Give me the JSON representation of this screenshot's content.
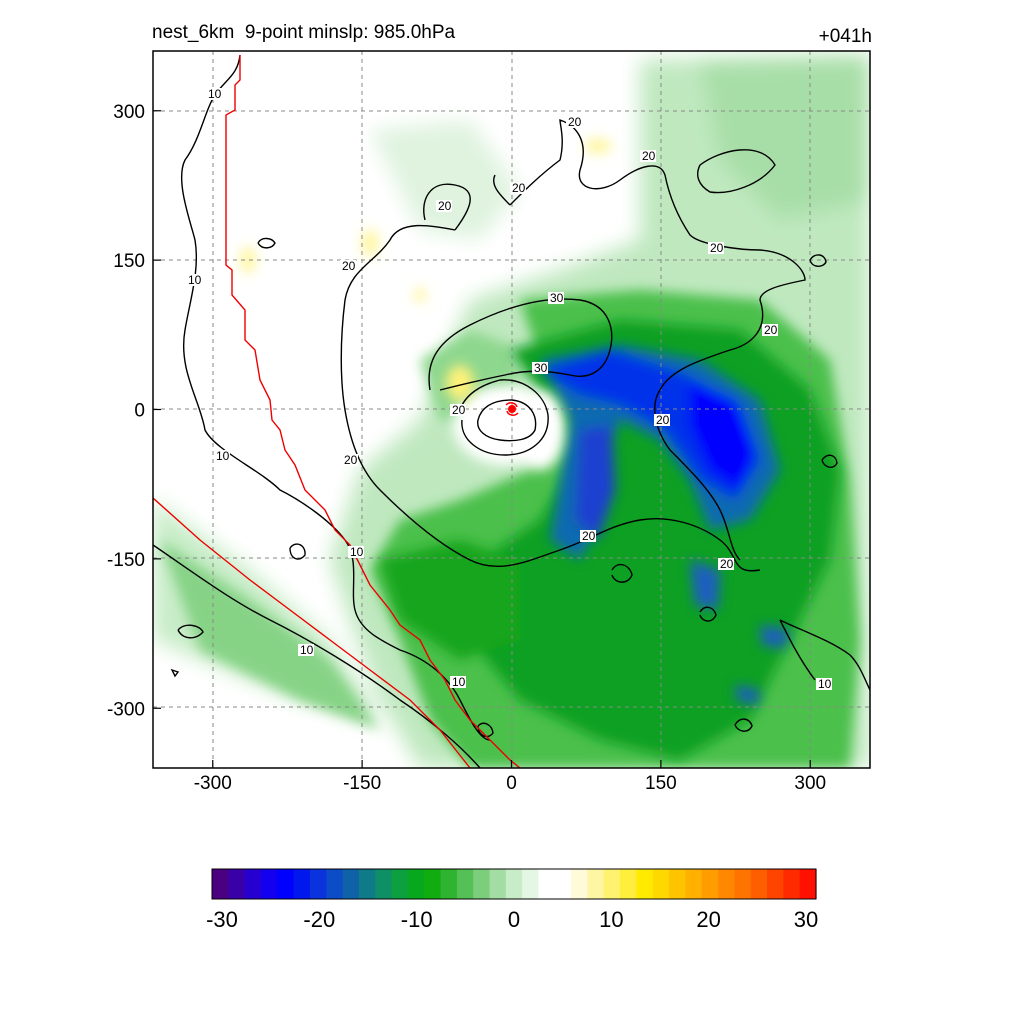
{
  "header": {
    "title_left": "nest_6km  9-point minslp: 985.0hPa",
    "title_right": "+041h"
  },
  "chart_data": {
    "type": "heatmap",
    "title": "nest_6km  9-point minslp: 985.0hPa",
    "valid_time_label": "+041h",
    "x_ticks": [
      -300,
      -150,
      0,
      150,
      300
    ],
    "y_ticks": [
      300,
      150,
      0,
      -150,
      -300
    ],
    "xlim": [
      -360,
      360
    ],
    "ylim": [
      -360,
      360
    ],
    "grid": true,
    "grid_style": "dashed",
    "colorbar": {
      "ticks": [
        "-30",
        "-20",
        "-10",
        "0",
        "10",
        "20",
        "30"
      ],
      "range": [
        -30,
        30
      ],
      "colors": [
        "#4b0082",
        "#3a00a8",
        "#2600d0",
        "#1400f0",
        "#0000ff",
        "#0018ee",
        "#0a32dd",
        "#0c4cc6",
        "#0f62a8",
        "#0f7a88",
        "#0f8f66",
        "#0da040",
        "#08a81e",
        "#10ac10",
        "#2fb42f",
        "#55c055",
        "#7cce7c",
        "#a3dda3",
        "#c7ecc7",
        "#e4f6e4",
        "#ffffff",
        "#ffffff",
        "#fffbd8",
        "#fff6a4",
        "#fff270",
        "#ffee3c",
        "#ffea00",
        "#ffd800",
        "#ffc400",
        "#ffb000",
        "#ff9c00",
        "#ff8800",
        "#ff7400",
        "#ff5e00",
        "#ff4400",
        "#ff2a00",
        "#ff1000"
      ]
    },
    "contours": {
      "levels": [
        10,
        20,
        30
      ],
      "color": "#000000"
    },
    "center_marker": {
      "x": 0,
      "y": 0,
      "color": "#ff0000"
    },
    "field_features": [
      {
        "label": "outer-green-band",
        "value": -6
      },
      {
        "label": "spiral-band-green",
        "value": -12
      },
      {
        "label": "core-blue-east",
        "value": -22
      },
      {
        "label": "core-blue-ne",
        "value": -24
      },
      {
        "label": "yellow-patch-west",
        "value": 6
      }
    ]
  }
}
